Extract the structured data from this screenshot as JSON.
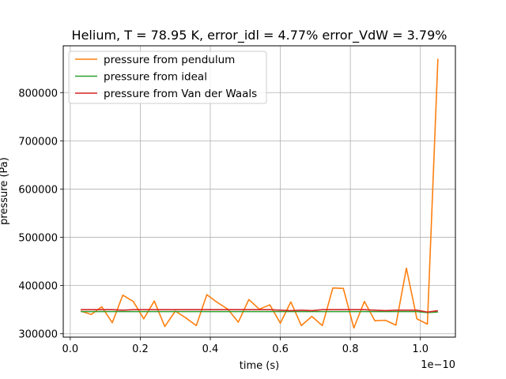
{
  "chart_data": {
    "type": "line",
    "title": "Helium, T = 78.95 K, error_idl = 4.77% error_VdW = 3.79%",
    "xlabel": "time (s)",
    "ylabel": "pressure (Pa)",
    "x_offset_label": "1e−10",
    "xlim": [
      -0.02,
      1.1
    ],
    "ylim": [
      293000,
      897000
    ],
    "x_ticks": [
      0.0,
      0.2,
      0.4,
      0.6,
      0.8,
      1.0
    ],
    "x_tick_labels": [
      "0.0",
      "0.2",
      "0.4",
      "0.6",
      "0.8",
      "1.0"
    ],
    "y_ticks": [
      300000,
      400000,
      500000,
      600000,
      700000,
      800000
    ],
    "y_tick_labels": [
      "300000",
      "400000",
      "500000",
      "600000",
      "700000",
      "800000"
    ],
    "grid": true,
    "legend_position": "upper-left",
    "x": [
      0.03,
      0.06,
      0.09,
      0.12,
      0.15,
      0.18,
      0.21,
      0.24,
      0.27,
      0.3,
      0.33,
      0.36,
      0.39,
      0.42,
      0.45,
      0.48,
      0.51,
      0.54,
      0.57,
      0.6,
      0.63,
      0.66,
      0.69,
      0.72,
      0.75,
      0.78,
      0.81,
      0.84,
      0.87,
      0.9,
      0.93,
      0.96,
      0.99,
      1.02,
      1.05
    ],
    "series": [
      {
        "name": "pressure from pendulum",
        "color": "#ff7f0e",
        "values": [
          347000,
          340000,
          356000,
          323000,
          380000,
          367000,
          331000,
          368000,
          315000,
          347000,
          333000,
          317000,
          381000,
          365000,
          351000,
          324000,
          371000,
          351000,
          360000,
          322000,
          366000,
          317000,
          336000,
          317000,
          395000,
          394000,
          312000,
          367000,
          327000,
          328000,
          318000,
          436000,
          331000,
          320000,
          870000
        ]
      },
      {
        "name": "pressure from ideal",
        "color": "#2ca02c",
        "values": [
          346000,
          346000,
          346000,
          346000,
          346000,
          346000,
          346000,
          346000,
          346000,
          346000,
          346000,
          346000,
          346000,
          346000,
          346000,
          346000,
          346000,
          346000,
          346000,
          346000,
          346000,
          346000,
          346000,
          346000,
          346000,
          346000,
          346000,
          346000,
          346000,
          346000,
          346000,
          346000,
          346000,
          344000,
          345000
        ]
      },
      {
        "name": "pressure from Van der Waals",
        "color": "#d62728",
        "values": [
          350000,
          350000,
          350000,
          350000,
          349000,
          350000,
          350000,
          350000,
          350000,
          350000,
          350000,
          350000,
          350000,
          350000,
          350000,
          350000,
          350000,
          350000,
          350000,
          349000,
          348000,
          349000,
          348000,
          350000,
          350000,
          350000,
          350000,
          350000,
          349000,
          348000,
          349000,
          349000,
          349000,
          345000,
          348000
        ]
      }
    ]
  }
}
